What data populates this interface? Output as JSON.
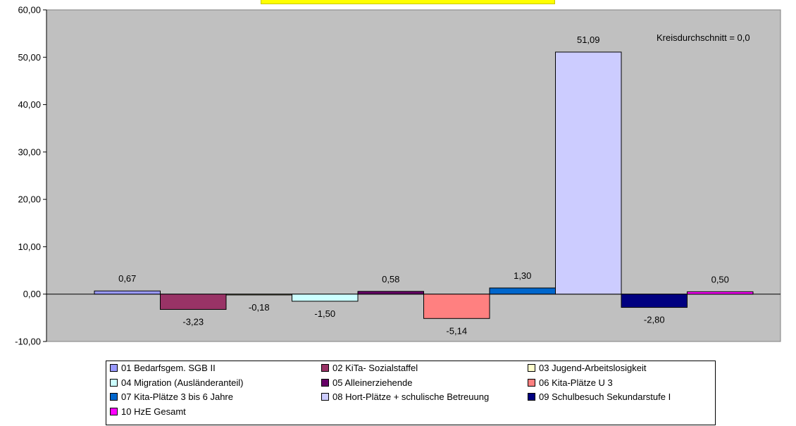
{
  "chart_data": {
    "type": "bar",
    "ylim": [
      -10,
      60
    ],
    "yticks": [
      "60,00",
      "50,00",
      "40,00",
      "30,00",
      "20,00",
      "10,00",
      "0,00",
      "-10,00"
    ],
    "ytick_values": [
      60,
      50,
      40,
      30,
      20,
      10,
      0,
      -10
    ],
    "annotation": "Kreisdurchschnitt = 0,0",
    "grid": false,
    "legend_position": "bottom",
    "series": [
      {
        "name": "01 Bedarfsgem. SGB II",
        "value": 0.67,
        "label": "0,67",
        "color": "#9999ff"
      },
      {
        "name": "02 KiTa- Sozialstaffel",
        "value": -3.23,
        "label": "-3,23",
        "color": "#993366"
      },
      {
        "name": "03 Jugend-Arbeitslosigkeit",
        "value": -0.18,
        "label": "-0,18",
        "color": "#ffffcc"
      },
      {
        "name": "04 Migration (Ausländeranteil)",
        "value": -1.5,
        "label": "-1,50",
        "color": "#ccffff"
      },
      {
        "name": "05 Alleinerziehende",
        "value": 0.58,
        "label": "0,58",
        "color": "#660066"
      },
      {
        "name": "06 Kita-Plätze U 3",
        "value": -5.14,
        "label": "-5,14",
        "color": "#ff8080"
      },
      {
        "name": "07 Kita-Plätze  3 bis 6 Jahre",
        "value": 1.3,
        "label": "1,30",
        "color": "#0066cc"
      },
      {
        "name": "08 Hort-Plätze + schulische Betreuung",
        "value": 51.09,
        "label": "51,09",
        "color": "#ccccff"
      },
      {
        "name": "09 Schulbesuch Sekundarstufe I",
        "value": -2.8,
        "label": "-2,80",
        "color": "#000080"
      },
      {
        "name": "10 HzE Gesamt",
        "value": 0.5,
        "label": "0,50",
        "color": "#ff00ff"
      }
    ]
  }
}
